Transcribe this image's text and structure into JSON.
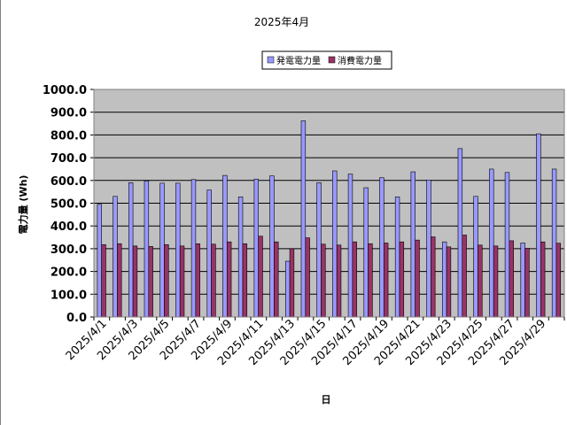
{
  "chart_data": {
    "type": "bar",
    "title": "2025年4月",
    "xlabel": "日",
    "ylabel": "電力量 (Wh)",
    "ylim": [
      0,
      1000
    ],
    "ytick_labels": [
      "0.0",
      "100.0",
      "200.0",
      "300.0",
      "400.0",
      "500.0",
      "600.0",
      "700.0",
      "800.0",
      "900.0",
      "1000.0"
    ],
    "categories": [
      "2025/4/1",
      "2025/4/2",
      "2025/4/3",
      "2025/4/4",
      "2025/4/5",
      "2025/4/6",
      "2025/4/7",
      "2025/4/8",
      "2025/4/9",
      "2025/4/10",
      "2025/4/11",
      "2025/4/12",
      "2025/4/13",
      "2025/4/14",
      "2025/4/15",
      "2025/4/16",
      "2025/4/17",
      "2025/4/18",
      "2025/4/19",
      "2025/4/20",
      "2025/4/21",
      "2025/4/22",
      "2025/4/23",
      "2025/4/24",
      "2025/4/25",
      "2025/4/26",
      "2025/4/27",
      "2025/4/28",
      "2025/4/29",
      "2025/4/30"
    ],
    "xtick_labels": [
      "2025/4/1",
      "2025/4/3",
      "2025/4/5",
      "2025/4/7",
      "2025/4/9",
      "2025/4/11",
      "2025/4/13",
      "2025/4/15",
      "2025/4/17",
      "2025/4/19",
      "2025/4/21",
      "2025/4/23",
      "2025/4/25",
      "2025/4/27",
      "2025/4/29"
    ],
    "series": [
      {
        "name": "発電電力量",
        "color": "#9999ff",
        "values": [
          495,
          530,
          590,
          598,
          588,
          588,
          604,
          558,
          622,
          528,
          606,
          620,
          245,
          862,
          590,
          642,
          628,
          568,
          612,
          528,
          638,
          602,
          330,
          740,
          530,
          650,
          635,
          325,
          805,
          650
        ]
      },
      {
        "name": "消費電力量",
        "color": "#993366",
        "values": [
          318,
          322,
          312,
          310,
          318,
          312,
          322,
          320,
          330,
          322,
          355,
          330,
          300,
          348,
          320,
          316,
          330,
          322,
          325,
          330,
          338,
          352,
          308,
          360,
          316,
          312,
          335,
          302,
          330,
          324
        ]
      }
    ],
    "grid": true,
    "legend": "top-right",
    "plot_background": "#c0c0c0"
  }
}
